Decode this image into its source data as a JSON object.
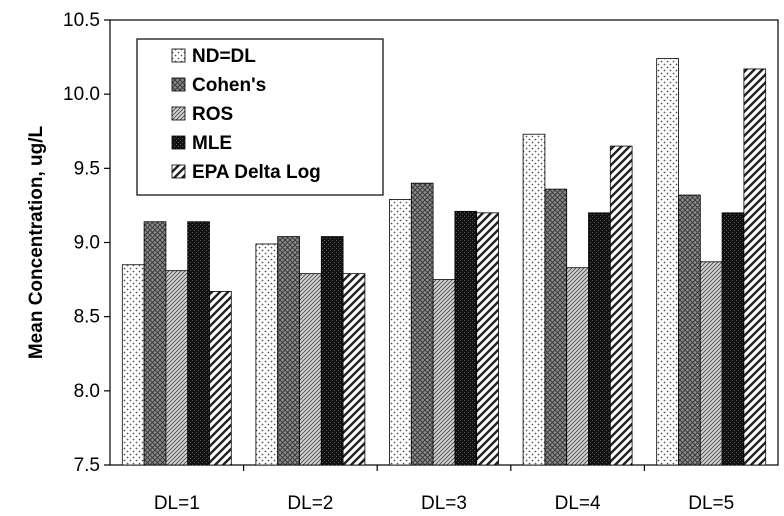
{
  "chart_data": {
    "type": "bar",
    "title": "",
    "xlabel": "",
    "ylabel": "Mean Concentration, ug/L",
    "ylim": [
      7.5,
      10.5
    ],
    "yticks": [
      "7.5",
      "8.0",
      "8.5",
      "9.0",
      "9.5",
      "10.0",
      "10.5"
    ],
    "ytick_values": [
      7.5,
      8.0,
      8.5,
      9.0,
      9.5,
      10.0,
      10.5
    ],
    "grid": false,
    "legend_position": "top-left",
    "categories": [
      "DL=1",
      "DL=2",
      "DL=3",
      "DL=4",
      "DL=5"
    ],
    "series": [
      {
        "name": "ND=DL",
        "values": [
          8.85,
          8.99,
          9.29,
          9.73,
          10.24
        ]
      },
      {
        "name": "Cohen's",
        "values": [
          9.14,
          9.04,
          9.4,
          9.36,
          9.32
        ]
      },
      {
        "name": "ROS",
        "values": [
          8.81,
          8.79,
          8.75,
          8.83,
          8.87
        ]
      },
      {
        "name": "MLE",
        "values": [
          9.14,
          9.04,
          9.21,
          9.2,
          9.2
        ]
      },
      {
        "name": "EPA Delta Log",
        "values": [
          8.67,
          8.79,
          9.2,
          9.65,
          10.17
        ]
      }
    ]
  }
}
